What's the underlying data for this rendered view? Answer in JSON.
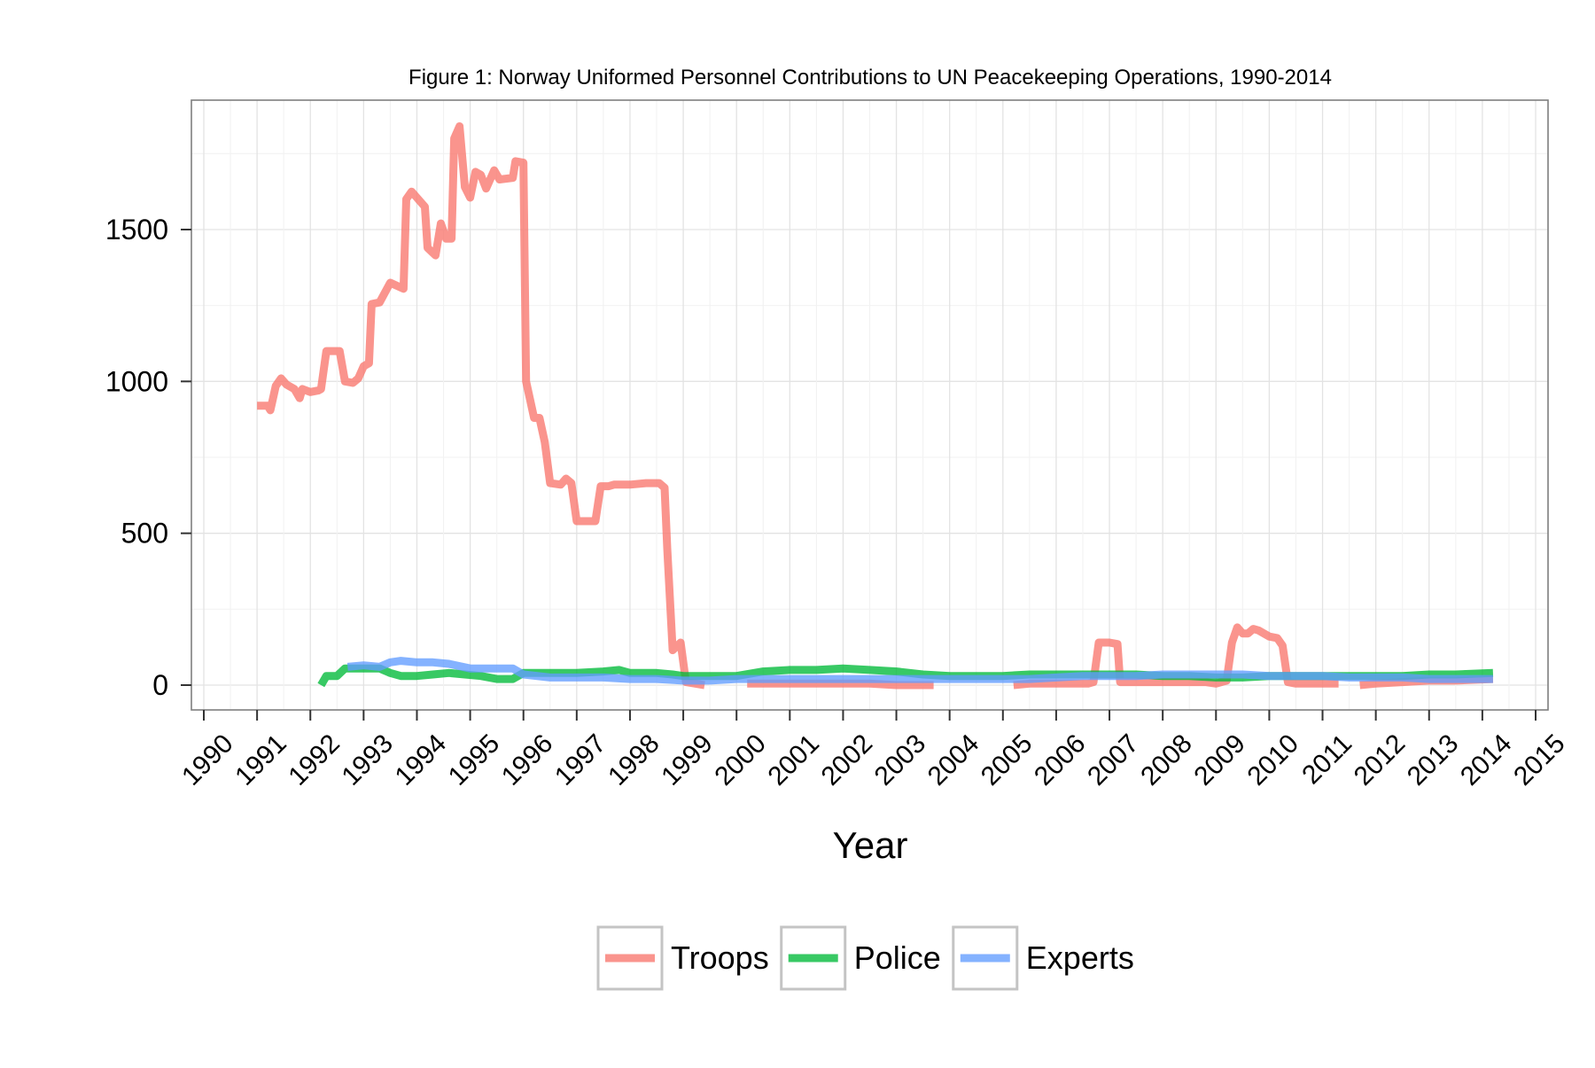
{
  "chart_data": {
    "type": "line",
    "title": "Figure 1: Norway Uniformed Personnel Contributions to UN Peacekeeping Operations, 1990-2014",
    "xlabel": "Year",
    "ylabel": "",
    "xlim": [
      1990,
      2015
    ],
    "ylim": [
      -80,
      1930
    ],
    "x_ticks": [
      "1990",
      "1991",
      "1992",
      "1993",
      "1994",
      "1995",
      "1996",
      "1997",
      "1998",
      "1999",
      "2000",
      "2001",
      "2002",
      "2003",
      "2004",
      "2005",
      "2006",
      "2007",
      "2008",
      "2009",
      "2010",
      "2011",
      "2012",
      "2013",
      "2014",
      "2015"
    ],
    "y_ticks": [
      0,
      500,
      1000,
      1500
    ],
    "grid": true,
    "legend_position": "bottom",
    "series": [
      {
        "name": "Troops",
        "color": "#F8766D",
        "points": [
          [
            1991.0,
            920
          ],
          [
            1991.2,
            920
          ],
          [
            1991.25,
            905
          ],
          [
            1991.35,
            985
          ],
          [
            1991.45,
            1010
          ],
          [
            1991.55,
            990
          ],
          [
            1991.7,
            975
          ],
          [
            1991.8,
            945
          ],
          [
            1991.85,
            975
          ],
          [
            1992.0,
            965
          ],
          [
            1992.15,
            970
          ],
          [
            1992.2,
            975
          ],
          [
            1992.3,
            1100
          ],
          [
            1992.55,
            1100
          ],
          [
            1992.65,
            1000
          ],
          [
            1992.8,
            995
          ],
          [
            1992.9,
            1010
          ],
          [
            1993.0,
            1050
          ],
          [
            1993.1,
            1060
          ],
          [
            1993.15,
            1255
          ],
          [
            1993.3,
            1260
          ],
          [
            1993.5,
            1325
          ],
          [
            1993.75,
            1305
          ],
          [
            1993.8,
            1600
          ],
          [
            1993.9,
            1625
          ],
          [
            1994.15,
            1575
          ],
          [
            1994.2,
            1440
          ],
          [
            1994.35,
            1415
          ],
          [
            1994.45,
            1520
          ],
          [
            1994.55,
            1470
          ],
          [
            1994.65,
            1470
          ],
          [
            1994.7,
            1800
          ],
          [
            1994.8,
            1840
          ],
          [
            1994.9,
            1640
          ],
          [
            1995.0,
            1605
          ],
          [
            1995.1,
            1690
          ],
          [
            1995.2,
            1680
          ],
          [
            1995.3,
            1635
          ],
          [
            1995.45,
            1695
          ],
          [
            1995.55,
            1665
          ],
          [
            1995.8,
            1670
          ],
          [
            1995.85,
            1725
          ],
          [
            1996.0,
            1720
          ],
          [
            1996.05,
            1000
          ],
          [
            1996.2,
            880
          ],
          [
            1996.3,
            880
          ],
          [
            1996.4,
            800
          ],
          [
            1996.5,
            665
          ],
          [
            1996.7,
            660
          ],
          [
            1996.8,
            680
          ],
          [
            1996.9,
            665
          ],
          [
            1997.0,
            540
          ],
          [
            1997.35,
            540
          ],
          [
            1997.45,
            655
          ],
          [
            1997.6,
            655
          ],
          [
            1997.7,
            660
          ],
          [
            1998.0,
            660
          ],
          [
            1998.3,
            665
          ],
          [
            1998.55,
            665
          ],
          [
            1998.65,
            650
          ],
          [
            1998.7,
            450
          ],
          [
            1998.8,
            115
          ],
          [
            1998.95,
            140
          ],
          [
            1999.05,
            10
          ],
          [
            1999.4,
            0
          ]
        ],
        "segments": [
          [
            [
              2000.2,
              5
            ],
            [
              2001.0,
              5
            ],
            [
              2001.5,
              5
            ],
            [
              2002.0,
              5
            ],
            [
              2002.5,
              5
            ],
            [
              2003.0,
              0
            ],
            [
              2003.7,
              0
            ]
          ],
          [
            [
              2005.2,
              0
            ],
            [
              2005.5,
              5
            ],
            [
              2006.0,
              5
            ],
            [
              2006.3,
              5
            ],
            [
              2006.6,
              5
            ],
            [
              2006.7,
              10
            ],
            [
              2006.8,
              140
            ],
            [
              2007.0,
              140
            ],
            [
              2007.15,
              135
            ],
            [
              2007.2,
              10
            ],
            [
              2007.5,
              10
            ],
            [
              2008.0,
              10
            ],
            [
              2008.5,
              10
            ],
            [
              2008.8,
              10
            ],
            [
              2009.0,
              5
            ],
            [
              2009.2,
              15
            ],
            [
              2009.3,
              140
            ],
            [
              2009.4,
              190
            ],
            [
              2009.5,
              170
            ],
            [
              2009.6,
              170
            ],
            [
              2009.7,
              185
            ],
            [
              2009.8,
              180
            ],
            [
              2010.0,
              160
            ],
            [
              2010.15,
              155
            ],
            [
              2010.25,
              130
            ],
            [
              2010.35,
              10
            ],
            [
              2010.5,
              5
            ],
            [
              2011.0,
              5
            ],
            [
              2011.3,
              5
            ]
          ],
          [
            [
              2011.7,
              0
            ],
            [
              2012.0,
              5
            ],
            [
              2012.5,
              10
            ],
            [
              2013.0,
              15
            ],
            [
              2013.5,
              15
            ],
            [
              2014.2,
              20
            ]
          ]
        ]
      },
      {
        "name": "Police",
        "color": "#00BA38",
        "points": [
          [
            1992.2,
            0
          ],
          [
            1992.3,
            30
          ],
          [
            1992.5,
            30
          ],
          [
            1992.65,
            55
          ],
          [
            1993.0,
            55
          ],
          [
            1993.3,
            55
          ],
          [
            1993.5,
            40
          ],
          [
            1993.7,
            30
          ],
          [
            1994.0,
            30
          ],
          [
            1994.3,
            35
          ],
          [
            1994.6,
            40
          ],
          [
            1994.9,
            35
          ],
          [
            1995.2,
            30
          ],
          [
            1995.5,
            20
          ],
          [
            1995.8,
            20
          ],
          [
            1996.0,
            40
          ],
          [
            1996.5,
            40
          ],
          [
            1997.0,
            40
          ],
          [
            1997.5,
            45
          ],
          [
            1997.8,
            50
          ],
          [
            1998.0,
            40
          ],
          [
            1998.5,
            40
          ],
          [
            1998.8,
            35
          ],
          [
            1999.0,
            30
          ],
          [
            1999.5,
            30
          ],
          [
            2000.0,
            30
          ],
          [
            2000.5,
            45
          ],
          [
            2001.0,
            50
          ],
          [
            2001.5,
            50
          ],
          [
            2002.0,
            55
          ],
          [
            2002.5,
            50
          ],
          [
            2003.0,
            45
          ],
          [
            2003.5,
            35
          ],
          [
            2004.0,
            30
          ],
          [
            2004.5,
            30
          ],
          [
            2005.0,
            30
          ],
          [
            2005.5,
            35
          ],
          [
            2006.0,
            35
          ],
          [
            2006.5,
            35
          ],
          [
            2007.0,
            35
          ],
          [
            2007.5,
            35
          ],
          [
            2008.0,
            30
          ],
          [
            2008.5,
            30
          ],
          [
            2009.0,
            25
          ],
          [
            2009.5,
            25
          ],
          [
            2010.0,
            30
          ],
          [
            2010.5,
            30
          ],
          [
            2011.0,
            30
          ],
          [
            2011.5,
            30
          ],
          [
            2012.0,
            30
          ],
          [
            2012.5,
            30
          ],
          [
            2013.0,
            35
          ],
          [
            2013.5,
            35
          ],
          [
            2014.2,
            40
          ]
        ]
      },
      {
        "name": "Experts",
        "color": "#619CFF",
        "points": [
          [
            1992.7,
            60
          ],
          [
            1993.0,
            65
          ],
          [
            1993.3,
            60
          ],
          [
            1993.5,
            75
          ],
          [
            1993.7,
            80
          ],
          [
            1994.0,
            75
          ],
          [
            1994.3,
            75
          ],
          [
            1994.6,
            70
          ],
          [
            1995.0,
            55
          ],
          [
            1995.5,
            55
          ],
          [
            1995.8,
            55
          ],
          [
            1996.0,
            35
          ],
          [
            1996.5,
            25
          ],
          [
            1997.0,
            25
          ],
          [
            1997.5,
            25
          ],
          [
            1998.0,
            20
          ],
          [
            1998.5,
            20
          ],
          [
            1999.0,
            15
          ],
          [
            1999.5,
            15
          ],
          [
            2000.0,
            20
          ],
          [
            2000.5,
            20
          ],
          [
            2001.0,
            20
          ],
          [
            2001.5,
            20
          ],
          [
            2002.0,
            20
          ],
          [
            2002.5,
            20
          ],
          [
            2003.0,
            20
          ],
          [
            2003.5,
            20
          ],
          [
            2004.0,
            20
          ],
          [
            2004.5,
            20
          ],
          [
            2005.0,
            20
          ],
          [
            2005.5,
            20
          ],
          [
            2006.0,
            25
          ],
          [
            2006.5,
            30
          ],
          [
            2007.0,
            30
          ],
          [
            2007.5,
            30
          ],
          [
            2008.0,
            35
          ],
          [
            2008.5,
            35
          ],
          [
            2009.0,
            35
          ],
          [
            2009.5,
            35
          ],
          [
            2010.0,
            30
          ],
          [
            2010.5,
            30
          ],
          [
            2011.0,
            30
          ],
          [
            2011.5,
            25
          ],
          [
            2012.0,
            25
          ],
          [
            2012.5,
            25
          ],
          [
            2013.0,
            20
          ],
          [
            2013.5,
            20
          ],
          [
            2014.2,
            20
          ]
        ]
      }
    ]
  }
}
